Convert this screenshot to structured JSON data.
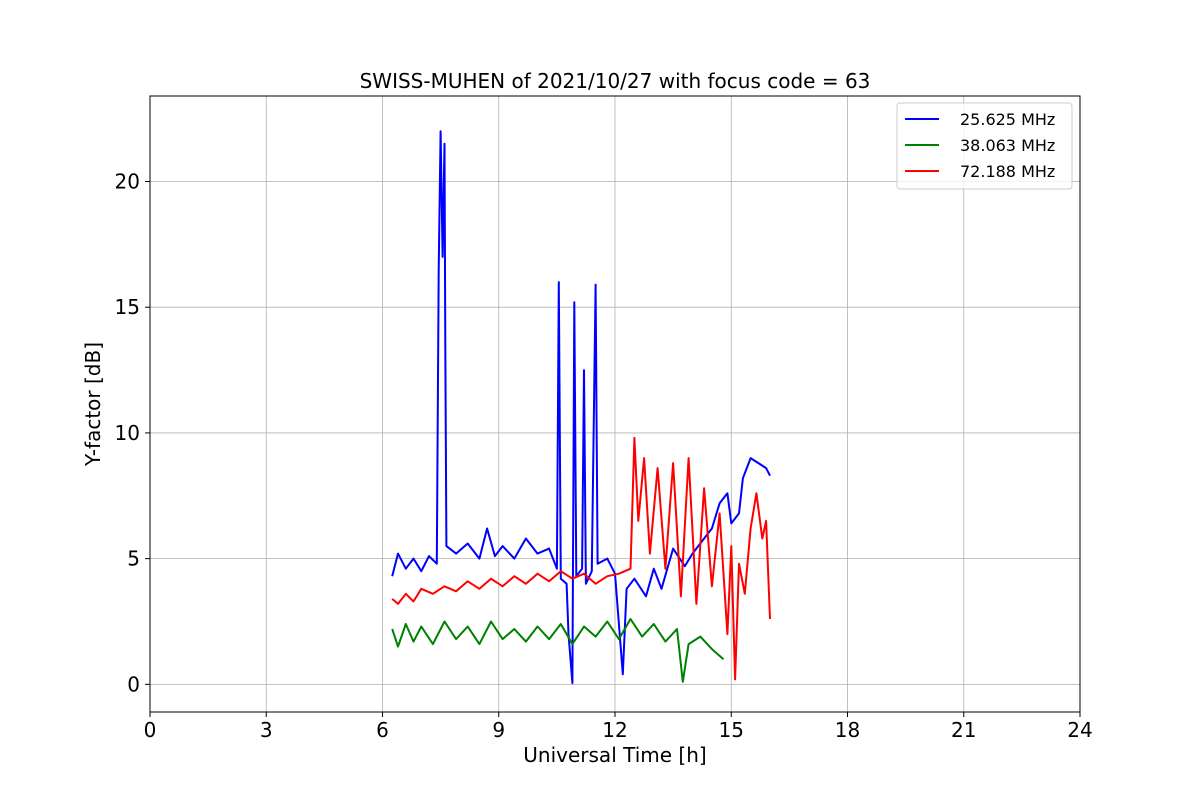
{
  "chart_data": {
    "type": "line",
    "title": "SWISS-MUHEN of 2021/10/27 with focus code = 63",
    "xlabel": "Universal Time [h]",
    "ylabel": "Y-factor [dB]",
    "xlim": [
      0,
      24
    ],
    "ylim": [
      -1.1,
      23.4
    ],
    "xticks": [
      0,
      3,
      6,
      9,
      12,
      15,
      18,
      21,
      24
    ],
    "yticks": [
      0,
      5,
      10,
      15,
      20
    ],
    "grid": true,
    "legend_position": "top-right",
    "series": [
      {
        "name": "25.625 MHz",
        "color": "#0000ff",
        "points": [
          [
            6.25,
            4.3
          ],
          [
            6.4,
            5.2
          ],
          [
            6.6,
            4.6
          ],
          [
            6.8,
            5.0
          ],
          [
            7.0,
            4.5
          ],
          [
            7.2,
            5.1
          ],
          [
            7.4,
            4.8
          ],
          [
            7.45,
            16.5
          ],
          [
            7.5,
            22.0
          ],
          [
            7.55,
            17.0
          ],
          [
            7.6,
            21.5
          ],
          [
            7.62,
            13.5
          ],
          [
            7.65,
            5.5
          ],
          [
            7.9,
            5.2
          ],
          [
            8.2,
            5.6
          ],
          [
            8.5,
            5.0
          ],
          [
            8.7,
            6.2
          ],
          [
            8.9,
            5.1
          ],
          [
            9.1,
            5.5
          ],
          [
            9.4,
            5.0
          ],
          [
            9.7,
            5.8
          ],
          [
            10.0,
            5.2
          ],
          [
            10.3,
            5.4
          ],
          [
            10.5,
            4.6
          ],
          [
            10.55,
            16.0
          ],
          [
            10.6,
            4.2
          ],
          [
            10.75,
            4.0
          ],
          [
            10.8,
            2.0
          ],
          [
            10.9,
            0.05
          ],
          [
            10.95,
            15.2
          ],
          [
            11.0,
            4.3
          ],
          [
            11.15,
            4.6
          ],
          [
            11.2,
            12.5
          ],
          [
            11.25,
            4.0
          ],
          [
            11.4,
            4.5
          ],
          [
            11.5,
            15.9
          ],
          [
            11.55,
            4.8
          ],
          [
            11.8,
            5.0
          ],
          [
            12.0,
            4.4
          ],
          [
            12.2,
            0.4
          ],
          [
            12.3,
            3.8
          ],
          [
            12.5,
            4.2
          ],
          [
            12.8,
            3.5
          ],
          [
            13.0,
            4.6
          ],
          [
            13.2,
            3.8
          ],
          [
            13.5,
            5.4
          ],
          [
            13.8,
            4.7
          ],
          [
            14.0,
            5.2
          ],
          [
            14.3,
            5.8
          ],
          [
            14.5,
            6.2
          ],
          [
            14.7,
            7.2
          ],
          [
            14.9,
            7.6
          ],
          [
            15.0,
            6.4
          ],
          [
            15.2,
            6.8
          ],
          [
            15.3,
            8.2
          ],
          [
            15.5,
            9.0
          ],
          [
            15.7,
            8.8
          ],
          [
            15.9,
            8.6
          ],
          [
            16.0,
            8.3
          ]
        ]
      },
      {
        "name": "38.063 MHz",
        "color": "#008000",
        "points": [
          [
            6.25,
            2.2
          ],
          [
            6.4,
            1.5
          ],
          [
            6.6,
            2.4
          ],
          [
            6.8,
            1.7
          ],
          [
            7.0,
            2.3
          ],
          [
            7.3,
            1.6
          ],
          [
            7.6,
            2.5
          ],
          [
            7.9,
            1.8
          ],
          [
            8.2,
            2.3
          ],
          [
            8.5,
            1.6
          ],
          [
            8.8,
            2.5
          ],
          [
            9.1,
            1.8
          ],
          [
            9.4,
            2.2
          ],
          [
            9.7,
            1.7
          ],
          [
            10.0,
            2.3
          ],
          [
            10.3,
            1.8
          ],
          [
            10.6,
            2.4
          ],
          [
            10.9,
            1.6
          ],
          [
            11.2,
            2.3
          ],
          [
            11.5,
            1.9
          ],
          [
            11.8,
            2.5
          ],
          [
            12.1,
            1.8
          ],
          [
            12.4,
            2.6
          ],
          [
            12.7,
            1.9
          ],
          [
            13.0,
            2.4
          ],
          [
            13.3,
            1.7
          ],
          [
            13.6,
            2.2
          ],
          [
            13.75,
            0.1
          ],
          [
            13.9,
            1.6
          ],
          [
            14.2,
            1.9
          ],
          [
            14.5,
            1.4
          ],
          [
            14.8,
            1.0
          ]
        ]
      },
      {
        "name": "72.188 MHz",
        "color": "#ff0000",
        "points": [
          [
            6.25,
            3.4
          ],
          [
            6.4,
            3.2
          ],
          [
            6.6,
            3.6
          ],
          [
            6.8,
            3.3
          ],
          [
            7.0,
            3.8
          ],
          [
            7.3,
            3.6
          ],
          [
            7.6,
            3.9
          ],
          [
            7.9,
            3.7
          ],
          [
            8.2,
            4.1
          ],
          [
            8.5,
            3.8
          ],
          [
            8.8,
            4.2
          ],
          [
            9.1,
            3.9
          ],
          [
            9.4,
            4.3
          ],
          [
            9.7,
            4.0
          ],
          [
            10.0,
            4.4
          ],
          [
            10.3,
            4.1
          ],
          [
            10.6,
            4.5
          ],
          [
            10.9,
            4.2
          ],
          [
            11.2,
            4.4
          ],
          [
            11.5,
            4.0
          ],
          [
            11.8,
            4.3
          ],
          [
            12.1,
            4.4
          ],
          [
            12.4,
            4.6
          ],
          [
            12.5,
            9.8
          ],
          [
            12.6,
            6.5
          ],
          [
            12.75,
            9.0
          ],
          [
            12.9,
            5.2
          ],
          [
            13.1,
            8.6
          ],
          [
            13.3,
            4.6
          ],
          [
            13.5,
            8.8
          ],
          [
            13.7,
            3.5
          ],
          [
            13.9,
            9.0
          ],
          [
            14.1,
            3.2
          ],
          [
            14.3,
            7.8
          ],
          [
            14.5,
            3.9
          ],
          [
            14.7,
            6.8
          ],
          [
            14.9,
            2.0
          ],
          [
            15.0,
            5.5
          ],
          [
            15.1,
            0.2
          ],
          [
            15.2,
            4.8
          ],
          [
            15.35,
            3.6
          ],
          [
            15.5,
            6.2
          ],
          [
            15.65,
            7.6
          ],
          [
            15.8,
            5.8
          ],
          [
            15.9,
            6.5
          ],
          [
            16.0,
            2.6
          ]
        ]
      }
    ]
  }
}
